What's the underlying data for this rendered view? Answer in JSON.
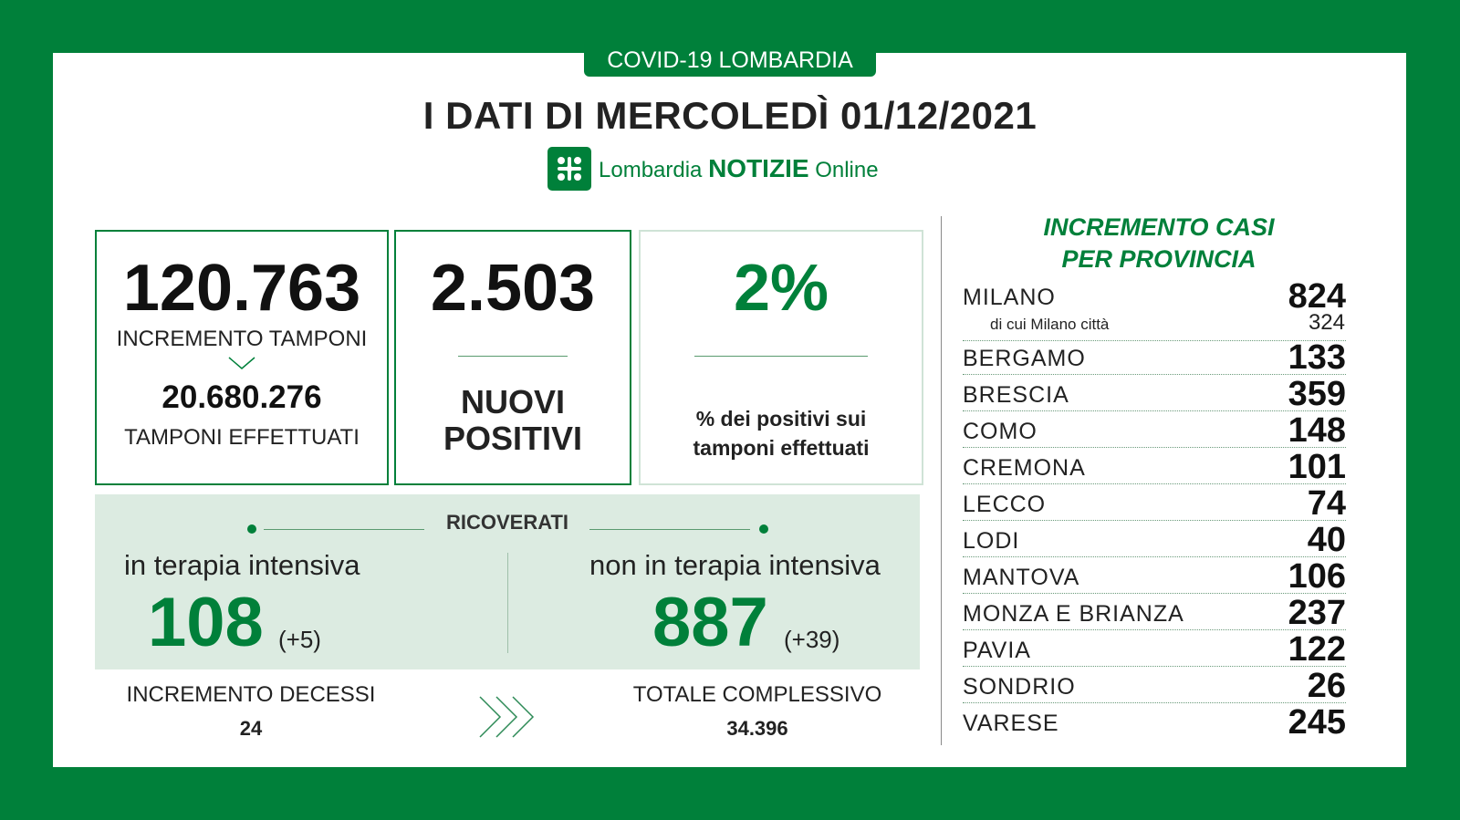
{
  "header": {
    "badge": "COVID-19 LOMBARDIA",
    "title": "I DATI DI MERCOLEDÌ 01/12/2021",
    "brand_regular": "Lombardia",
    "brand_bold": "NOTIZIE",
    "brand_suffix": "Online"
  },
  "cards": {
    "tamponi_increment": "120.763",
    "tamponi_increment_label": "INCREMENTO TAMPONI",
    "tamponi_total": "20.680.276",
    "tamponi_total_label": "TAMPONI EFFETTUATI",
    "nuovi_positivi": "2.503",
    "nuovi_positivi_label_1": "NUOVI",
    "nuovi_positivi_label_2": "POSITIVI",
    "percent_positivi": "2%",
    "percent_label_1": "% dei positivi sui",
    "percent_label_2": "tamponi effettuati"
  },
  "ricoverati": {
    "title": "RICOVERATI",
    "ti_label": "in terapia intensiva",
    "ti_value": "108",
    "ti_delta": "(+5)",
    "non_ti_label": "non in terapia intensiva",
    "non_ti_value": "887",
    "non_ti_delta": "(+39)"
  },
  "decessi": {
    "increment_label": "INCREMENTO DECESSI",
    "increment_value": "24",
    "total_label": "TOTALE COMPLESSIVO",
    "total_value": "34.396"
  },
  "province": {
    "title_1": "INCREMENTO CASI",
    "title_2": "PER PROVINCIA",
    "milano_sub_label": "di cui Milano città",
    "milano_sub_value": "324",
    "rows": [
      {
        "name": "MILANO",
        "value": "824"
      },
      {
        "name": "BERGAMO",
        "value": "133"
      },
      {
        "name": "BRESCIA",
        "value": "359"
      },
      {
        "name": "COMO",
        "value": "148"
      },
      {
        "name": "CREMONA",
        "value": "101"
      },
      {
        "name": "LECCO",
        "value": "74"
      },
      {
        "name": "LODI",
        "value": "40"
      },
      {
        "name": "MANTOVA",
        "value": "106"
      },
      {
        "name": "MONZA E BRIANZA",
        "value": "237"
      },
      {
        "name": "PAVIA",
        "value": "122"
      },
      {
        "name": "SONDRIO",
        "value": "26"
      },
      {
        "name": "VARESE",
        "value": "245"
      }
    ]
  },
  "colors": {
    "brand_green": "#00803a",
    "panel_bg": "#ffffff",
    "hosp_bg": "#dcebe1"
  }
}
